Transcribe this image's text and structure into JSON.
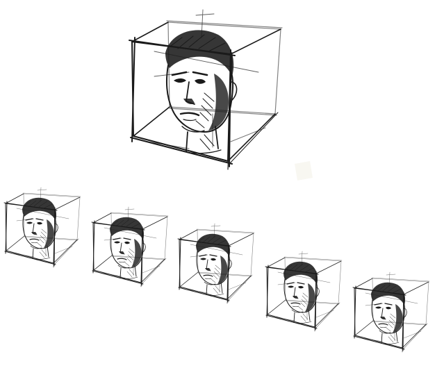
{
  "image": {
    "background": "#ffffff",
    "ink_color": "#1a1a1a",
    "skin_tone": "#ffffff",
    "subject": "sketch-of-head-inside-wireframe-cube",
    "large_sketch_count": 1,
    "small_sketch_count": 5,
    "small_sketch_arrangement": "diagonal-row-descending-right"
  }
}
